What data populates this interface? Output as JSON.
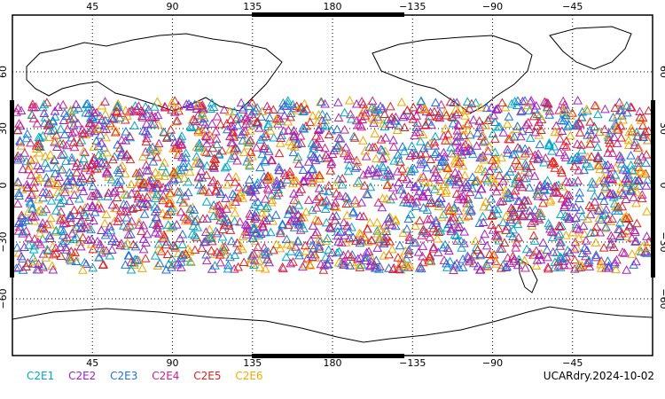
{
  "map": {
    "projection": "cylindrical",
    "lon_range": [
      0,
      360
    ],
    "lat_range": [
      -90,
      90
    ],
    "grid": "dotted",
    "lon_ticks": [
      "45",
      "90",
      "135",
      "180",
      "−135",
      "−90",
      "−45"
    ],
    "lat_ticks": [
      "60",
      "30",
      "0",
      "−30",
      "−60"
    ],
    "lat_coverage": [
      -45,
      45
    ]
  },
  "legend": [
    {
      "label": "C2E1",
      "color": "#00a7c4"
    },
    {
      "label": "C2E2",
      "color": "#a020c8"
    },
    {
      "label": "C2E3",
      "color": "#1e6fe0"
    },
    {
      "label": "C2E4",
      "color": "#c82090"
    },
    {
      "label": "C2E5",
      "color": "#e0201e"
    },
    {
      "label": "C2E6",
      "color": "#f0a800"
    }
  ],
  "footer": {
    "stamp": "UCARdry.2024-10-02"
  }
}
